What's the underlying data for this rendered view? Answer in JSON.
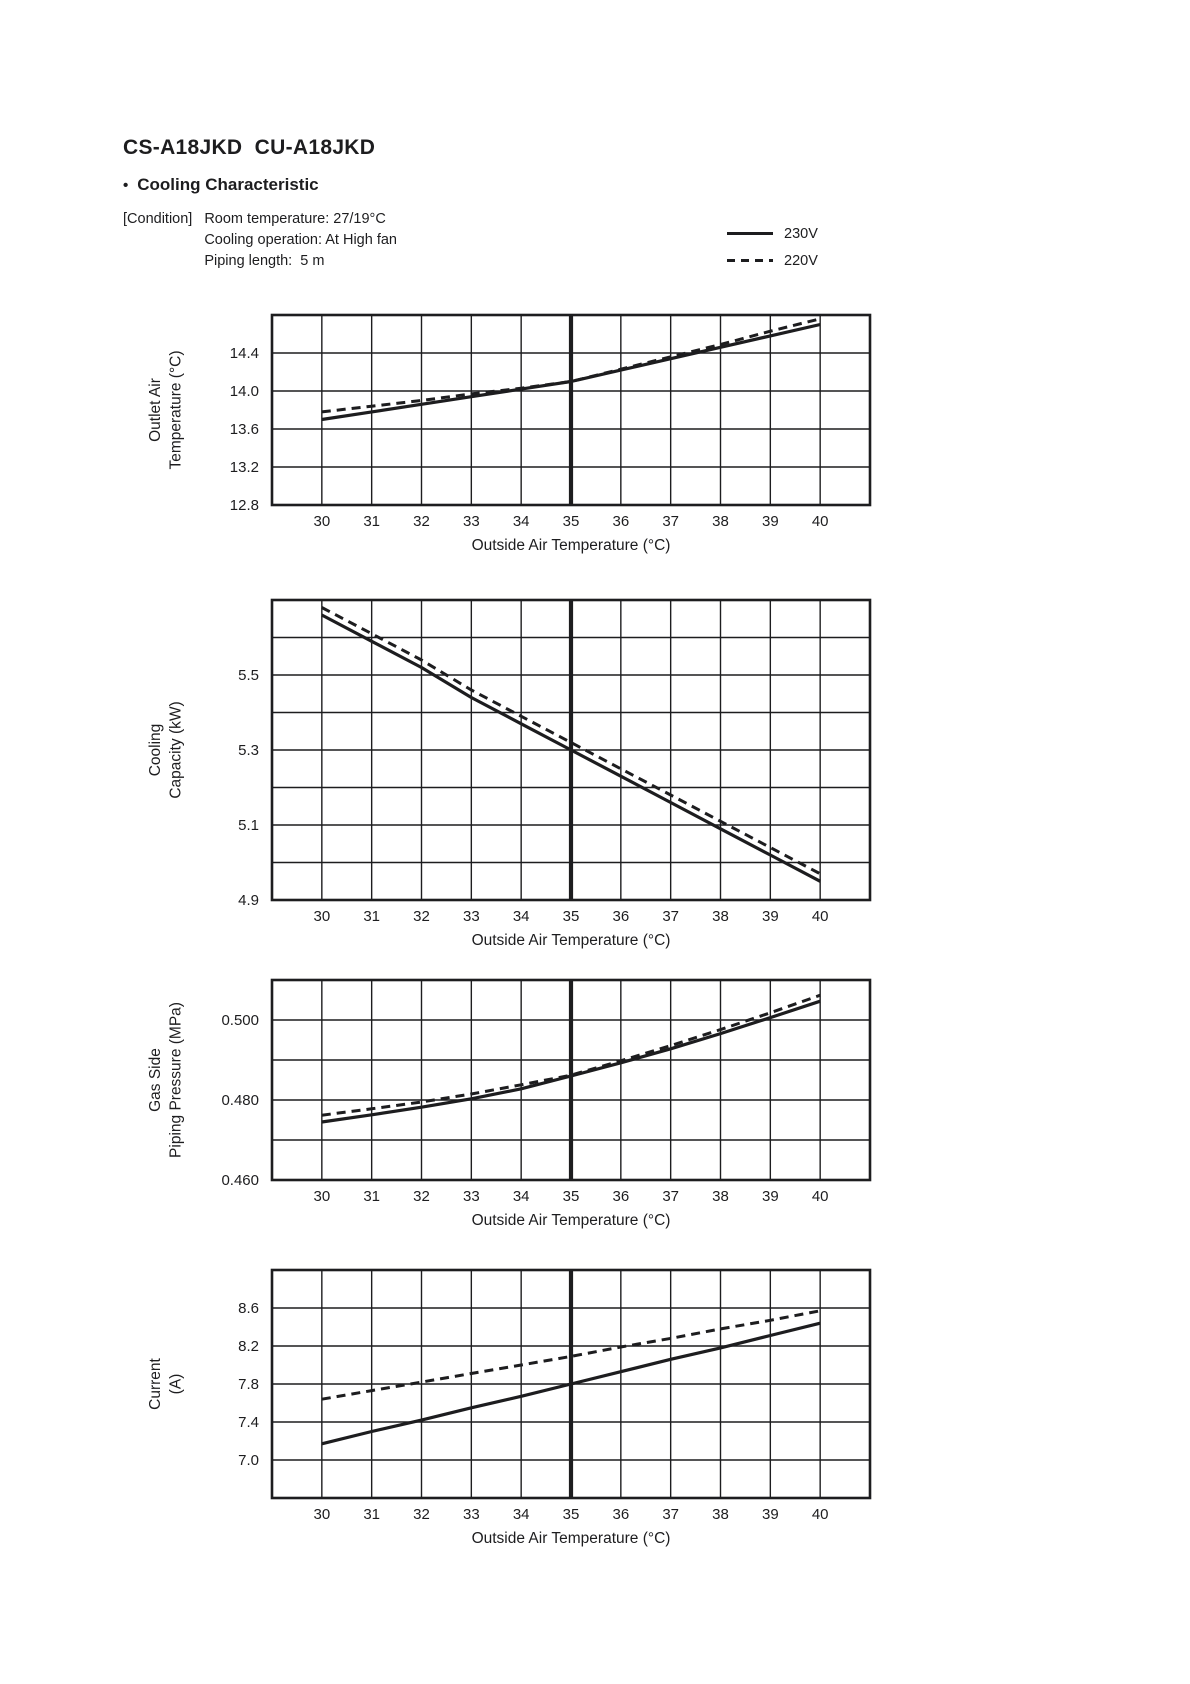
{
  "page": {
    "title": "CS-A18JKD  CU-A18JKD",
    "section_bullet": "•",
    "section_title": "Cooling Characteristic",
    "condition_label": "[Condition]",
    "condition_lines": [
      "Room temperature: 27/19°C",
      "Cooling operation: At High fan",
      "Piping length:  5 m"
    ]
  },
  "legend": {
    "position": "top-right",
    "items": [
      {
        "label": "230V",
        "style": "solid"
      },
      {
        "label": "220V",
        "style": "dashed"
      }
    ]
  },
  "colors": {
    "ink": "#1d1d1f",
    "paper": "#ffffff"
  },
  "chart_data": [
    {
      "id": "outlet-air-temperature",
      "type": "line",
      "title": "",
      "xlabel": "Outside Air Temperature (°C)",
      "ylabel_lines": [
        "Outlet Air",
        "Temperature (°C)"
      ],
      "grid": true,
      "x": [
        30,
        31,
        32,
        33,
        34,
        35,
        36,
        37,
        38,
        39,
        40
      ],
      "xlim": [
        29,
        41
      ],
      "x_highlight": 35,
      "xtick_labels": [
        "30",
        "31",
        "32",
        "33",
        "34",
        "35",
        "36",
        "37",
        "38",
        "39",
        "40"
      ],
      "ylim": [
        12.8,
        14.8
      ],
      "y_grid_step": 0.4,
      "yticks": [
        {
          "v": 14.4,
          "label": "14.4"
        },
        {
          "v": 14.0,
          "label": "14.0"
        },
        {
          "v": 13.6,
          "label": "13.6"
        },
        {
          "v": 13.2,
          "label": "13.2"
        },
        {
          "v": 12.8,
          "label": "12.8"
        }
      ],
      "series": [
        {
          "name": "230V",
          "style": "solid",
          "values": [
            13.7,
            13.78,
            13.86,
            13.94,
            14.02,
            14.1,
            14.22,
            14.34,
            14.46,
            14.58,
            14.7
          ]
        },
        {
          "name": "220V",
          "style": "dashed",
          "values": [
            13.78,
            13.84,
            13.9,
            13.97,
            14.03,
            14.1,
            14.23,
            14.36,
            14.49,
            14.63,
            14.76
          ]
        }
      ]
    },
    {
      "id": "cooling-capacity",
      "type": "line",
      "title": "",
      "xlabel": "Outside Air Temperature (°C)",
      "ylabel_lines": [
        "Cooling",
        "Capacity (kW)"
      ],
      "grid": true,
      "x": [
        30,
        31,
        32,
        33,
        34,
        35,
        36,
        37,
        38,
        39,
        40
      ],
      "xlim": [
        29,
        41
      ],
      "x_highlight": 35,
      "xtick_labels": [
        "30",
        "31",
        "32",
        "33",
        "34",
        "35",
        "36",
        "37",
        "38",
        "39",
        "40"
      ],
      "ylim": [
        4.9,
        5.7
      ],
      "y_grid_step": 0.1,
      "yticks": [
        {
          "v": 5.5,
          "label": "5.5"
        },
        {
          "v": 5.3,
          "label": "5.3"
        },
        {
          "v": 5.1,
          "label": "5.1"
        },
        {
          "v": 4.9,
          "label": "4.9"
        }
      ],
      "series": [
        {
          "name": "230V",
          "style": "solid",
          "values": [
            5.66,
            5.59,
            5.52,
            5.44,
            5.37,
            5.3,
            5.23,
            5.16,
            5.09,
            5.02,
            4.95
          ]
        },
        {
          "name": "220V",
          "style": "dashed",
          "values": [
            5.68,
            5.61,
            5.54,
            5.46,
            5.39,
            5.32,
            5.25,
            5.18,
            5.11,
            5.04,
            4.97
          ]
        }
      ]
    },
    {
      "id": "gas-side-piping-pressure",
      "type": "line",
      "title": "",
      "xlabel": "Outside Air Temperature (°C)",
      "ylabel_lines": [
        "Gas Side",
        "Piping Pressure (MPa)"
      ],
      "grid": true,
      "x": [
        30,
        31,
        32,
        33,
        34,
        35,
        36,
        37,
        38,
        39,
        40
      ],
      "xlim": [
        29,
        41
      ],
      "x_highlight": 35,
      "xtick_labels": [
        "30",
        "31",
        "32",
        "33",
        "34",
        "35",
        "36",
        "37",
        "38",
        "39",
        "40"
      ],
      "ylim": [
        0.46,
        0.51
      ],
      "y_grid_step": 0.01,
      "yticks": [
        {
          "v": 0.5,
          "label": "0.500"
        },
        {
          "v": 0.48,
          "label": "0.480"
        },
        {
          "v": 0.46,
          "label": "0.460"
        }
      ],
      "series": [
        {
          "name": "230V",
          "style": "solid",
          "values": [
            0.4745,
            0.4763,
            0.4782,
            0.4803,
            0.4828,
            0.486,
            0.4893,
            0.4928,
            0.4966,
            0.5006,
            0.5047
          ]
        },
        {
          "name": "220V",
          "style": "dashed",
          "values": [
            0.4762,
            0.4778,
            0.4795,
            0.4815,
            0.4838,
            0.4862,
            0.4898,
            0.4936,
            0.4976,
            0.5018,
            0.5062
          ]
        }
      ]
    },
    {
      "id": "current",
      "type": "line",
      "title": "",
      "xlabel": "Outside Air Temperature (°C)",
      "ylabel_lines": [
        "Current",
        "(A)"
      ],
      "grid": true,
      "x": [
        30,
        31,
        32,
        33,
        34,
        35,
        36,
        37,
        38,
        39,
        40
      ],
      "xlim": [
        29,
        41
      ],
      "x_highlight": 35,
      "xtick_labels": [
        "30",
        "31",
        "32",
        "33",
        "34",
        "35",
        "36",
        "37",
        "38",
        "39",
        "40"
      ],
      "ylim": [
        6.6,
        9.0
      ],
      "y_grid_step": 0.4,
      "yticks": [
        {
          "v": 8.6,
          "label": "8.6"
        },
        {
          "v": 8.2,
          "label": "8.2"
        },
        {
          "v": 7.8,
          "label": "7.8"
        },
        {
          "v": 7.4,
          "label": "7.4"
        },
        {
          "v": 7.0,
          "label": "7.0"
        }
      ],
      "series": [
        {
          "name": "230V",
          "style": "solid",
          "values": [
            7.17,
            7.3,
            7.42,
            7.55,
            7.67,
            7.8,
            7.93,
            8.06,
            8.18,
            8.31,
            8.44
          ]
        },
        {
          "name": "220V",
          "style": "dashed",
          "values": [
            7.64,
            7.73,
            7.82,
            7.91,
            8.0,
            8.09,
            8.19,
            8.28,
            8.38,
            8.47,
            8.57
          ]
        }
      ]
    }
  ]
}
